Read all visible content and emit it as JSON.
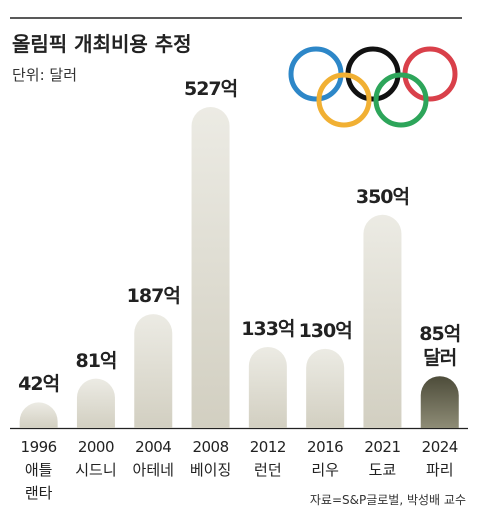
{
  "chart_data": {
    "type": "bar",
    "title": "올림픽 개최비용 추정",
    "subtitle": "단위: 달러",
    "categories": [
      "1996",
      "2000",
      "2004",
      "2008",
      "2012",
      "2016",
      "2021",
      "2024"
    ],
    "cities": [
      "애틀랜타",
      "시드니",
      "아테네",
      "베이징",
      "런던",
      "리우",
      "도쿄",
      "파리"
    ],
    "values": [
      42,
      81,
      187,
      527,
      133,
      130,
      350,
      85
    ],
    "value_labels": [
      "42억",
      "81억",
      "187억",
      "527억",
      "133억",
      "130억",
      "350억",
      "85억 달러"
    ],
    "colors": [
      "#e0ddd2",
      "#e0ddd2",
      "#e0ddd2",
      "#e0ddd2",
      "#e0ddd2",
      "#e0ddd2",
      "#e0ddd2",
      "#5c5b47"
    ],
    "source": "자료=S&P글로벌, 박성배 교수"
  }
}
